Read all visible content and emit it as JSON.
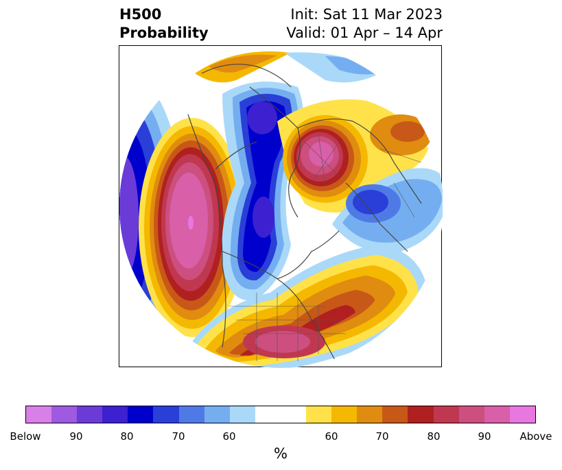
{
  "title": {
    "left_line1": "H500",
    "left_line2": "Probability",
    "right_line1": "Init: Sat 11 Mar 2023",
    "right_line2": "Valid: 01 Apr – 14 Apr"
  },
  "colors": {
    "below": [
      "#d87fe8",
      "#9e5ae0",
      "#6b3bd8",
      "#3d20d0",
      "#0000cc",
      "#2a3fd8",
      "#4f7ae6",
      "#74aef0",
      "#aad8f8"
    ],
    "neutral": "#ffffff",
    "above": [
      "#ffe24a",
      "#f5b800",
      "#e08c10",
      "#c85818",
      "#b02020",
      "#c03850",
      "#cc4f80",
      "#d85fa8",
      "#e878e0"
    ]
  },
  "colorbar": {
    "ticks": [
      "Below",
      "90",
      "80",
      "70",
      "60",
      "60",
      "70",
      "80",
      "90",
      "Above"
    ],
    "unit": "%"
  },
  "map": {
    "projection": "polar-stereographic (north pole)",
    "regions_note": "Below-normal probability troughs over Aleutians/Alaska, western Canada to Hudson Bay, and Scandinavia; above-normal ridges over the North Pacific, the Siberian Arctic, and the eastern United States / western Atlantic."
  }
}
